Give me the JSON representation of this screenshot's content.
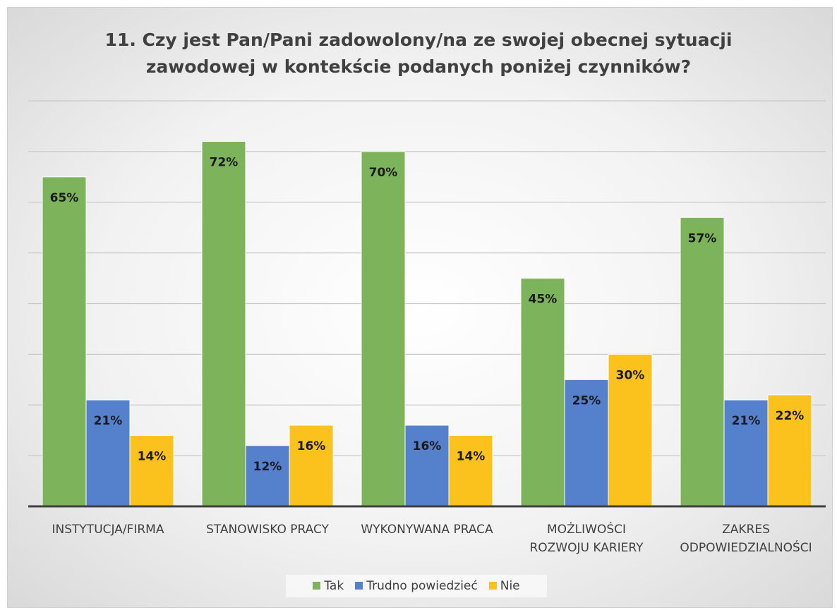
{
  "chart_data": {
    "type": "bar",
    "title": "11. Czy jest Pan/Pani zadowolony/na ze swojej obecnej sytuacji\nzawodowej w kontekście podanych poniżej czynników?",
    "categories": [
      "INSTYTUCJA/FIRMA",
      "STANOWISKO PRACY",
      "WYKONYWANA PRACA",
      "MOŻLIWOŚCI\nROZWOJU KARIERY",
      "ZAKRES\nODPOWIEDZIALNOŚCI"
    ],
    "series": [
      {
        "name": "Tak",
        "color": "#7db35a",
        "values": [
          65,
          72,
          70,
          45,
          57
        ],
        "value_labels": [
          "65%",
          "72%",
          "70%",
          "45%",
          "57%"
        ]
      },
      {
        "name": "Trudno powiedzieć",
        "color": "#5580cc",
        "values": [
          21,
          12,
          16,
          25,
          21
        ],
        "value_labels": [
          "21%",
          "12%",
          "16%",
          "25%",
          "21%"
        ]
      },
      {
        "name": "Nie",
        "color": "#fbc11c",
        "values": [
          14,
          16,
          14,
          30,
          22
        ],
        "value_labels": [
          "14%",
          "16%",
          "14%",
          "30%",
          "22%"
        ]
      }
    ],
    "ylim": [
      0,
      80
    ],
    "yticks": [
      0,
      10,
      20,
      30,
      40,
      50,
      60,
      70,
      80
    ],
    "grid": true,
    "legend": "bottom"
  }
}
